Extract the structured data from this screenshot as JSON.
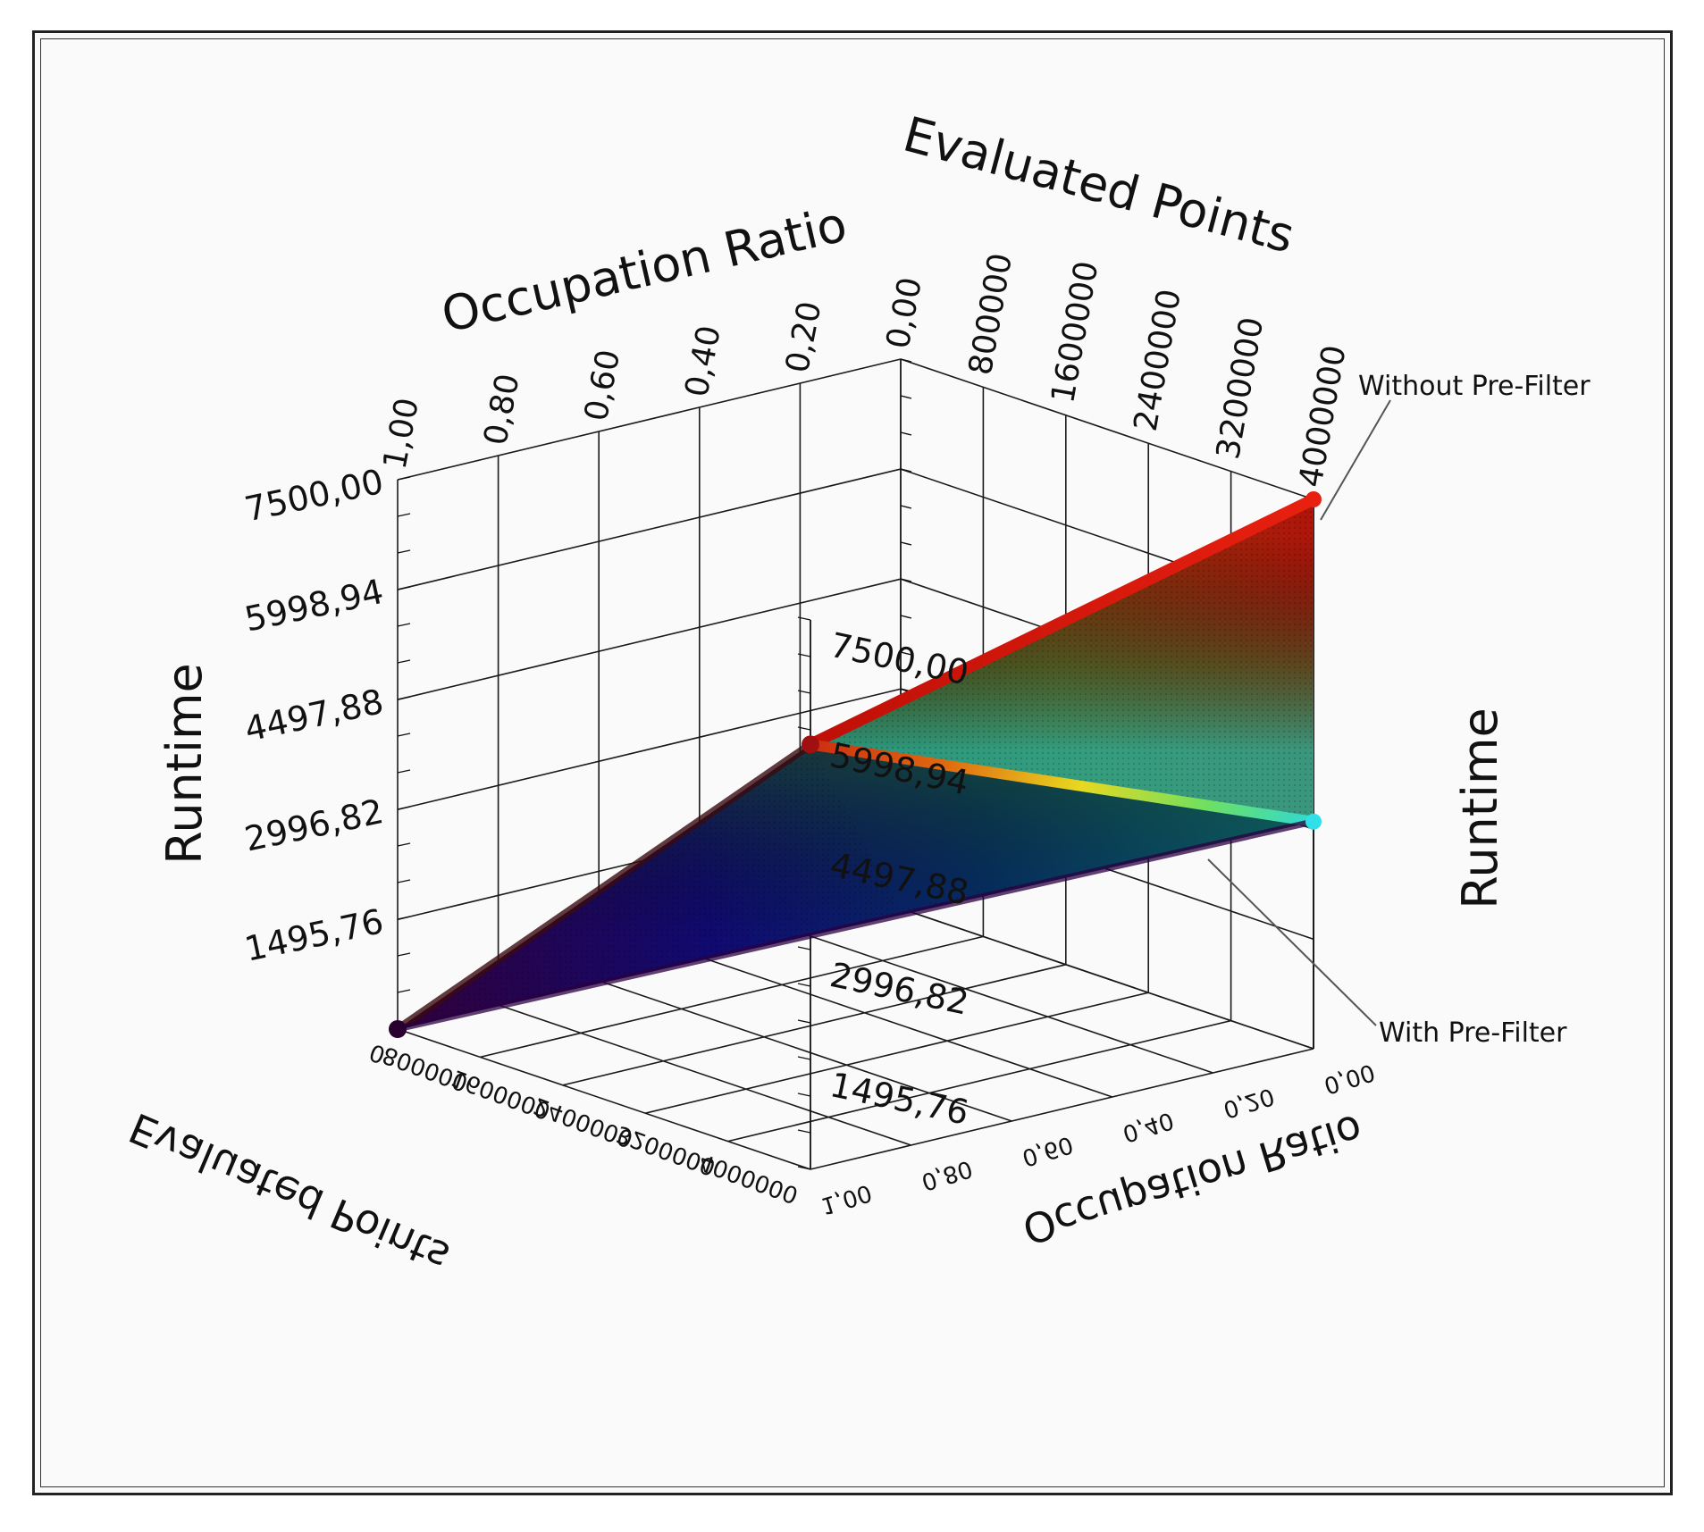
{
  "chart_data": {
    "type": "surface",
    "axes": {
      "occupation_ratio": {
        "label": "Occupation Ratio",
        "range": [
          0.0,
          1.0
        ],
        "ticks_top": [
          "1,00",
          "0,80",
          "0,60",
          "0,40",
          "0,20",
          "0,00"
        ],
        "ticks_bottom": [
          "0,00",
          "0,20",
          "0,40",
          "0,60",
          "0,80",
          "1,00"
        ]
      },
      "evaluated_points": {
        "label": "Evaluated Points",
        "range": [
          0,
          4000000
        ],
        "ticks_top": [
          "800000",
          "1600000",
          "2400000",
          "3200000",
          "4000000"
        ],
        "ticks_bottom": [
          "0",
          "800000",
          "1600000",
          "2400000",
          "3200000",
          "4000000"
        ]
      },
      "runtime": {
        "label": "Runtime",
        "range": [
          0,
          7500
        ],
        "ticks": [
          "1495,76",
          "2996,82",
          "4497,88",
          "5998,94",
          "7500,00"
        ]
      }
    },
    "series": [
      {
        "name": "Without Pre-Filter",
        "corners": [
          {
            "points": 0,
            "ratio": 1.0,
            "runtime": 0
          },
          {
            "points": 0,
            "ratio": 0.0,
            "runtime": 0
          },
          {
            "points": 4000000,
            "ratio": 1.0,
            "runtime": 5800
          },
          {
            "points": 4000000,
            "ratio": 0.0,
            "runtime": 7500
          }
        ]
      },
      {
        "name": "With Pre-Filter",
        "corners": [
          {
            "points": 0,
            "ratio": 1.0,
            "runtime": 0
          },
          {
            "points": 0,
            "ratio": 0.0,
            "runtime": 0
          },
          {
            "points": 4000000,
            "ratio": 1.0,
            "runtime": 5800
          },
          {
            "points": 4000000,
            "ratio": 0.0,
            "runtime": 3100
          }
        ]
      }
    ],
    "colormap": [
      "#3a0040",
      "#0a0a8a",
      "#0f7a6a",
      "#2ecc40",
      "#e8e82a",
      "#f08a20",
      "#e01818"
    ],
    "grid": true
  }
}
